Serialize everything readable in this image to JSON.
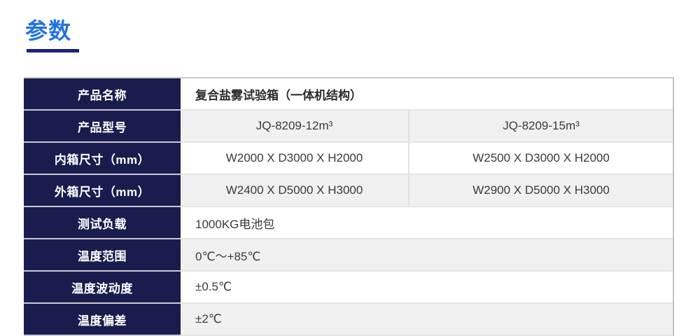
{
  "page": {
    "title": "参数"
  },
  "colors": {
    "accent_blue": "#2173e0",
    "underline_navy": "#1a2472",
    "header_navy": "#1b1c4e",
    "row_alt_gray": "#f0f0f0",
    "row_white": "#ffffff",
    "border_light": "#e4e4e4",
    "border_outer": "#c3c3c3",
    "label_text": "#ffffff",
    "value_text": "#3a3a3a"
  },
  "table": {
    "rows": [
      {
        "label": "产品名称",
        "cells": [
          "复合盐雾试验箱（一体机结构）"
        ],
        "align": "left",
        "shade": "white",
        "bold": true
      },
      {
        "label": "产品型号",
        "cells": [
          "JQ-8209-12m³",
          "JQ-8209-15m³"
        ],
        "align": "center",
        "shade": "gray",
        "bold": false
      },
      {
        "label": "内箱尺寸（mm）",
        "cells": [
          "W2000 X D3000 X H2000",
          "W2500 X D3000 X H2000"
        ],
        "align": "center",
        "shade": "white",
        "bold": false
      },
      {
        "label": "外箱尺寸（mm）",
        "cells": [
          "W2400 X D5000 X H3000",
          "W2900 X D5000 X H3000"
        ],
        "align": "center",
        "shade": "gray",
        "bold": false
      },
      {
        "label": "测试负载",
        "cells": [
          "1000KG电池包"
        ],
        "align": "left",
        "shade": "white",
        "bold": false
      },
      {
        "label": "温度范围",
        "cells": [
          "0℃～+85℃"
        ],
        "align": "left",
        "shade": "gray",
        "bold": false
      },
      {
        "label": "温度波动度",
        "cells": [
          "±0.5℃"
        ],
        "align": "left",
        "shade": "white",
        "bold": false
      },
      {
        "label": "温度偏差",
        "cells": [
          "±2℃"
        ],
        "align": "left",
        "shade": "gray",
        "bold": false
      }
    ]
  }
}
